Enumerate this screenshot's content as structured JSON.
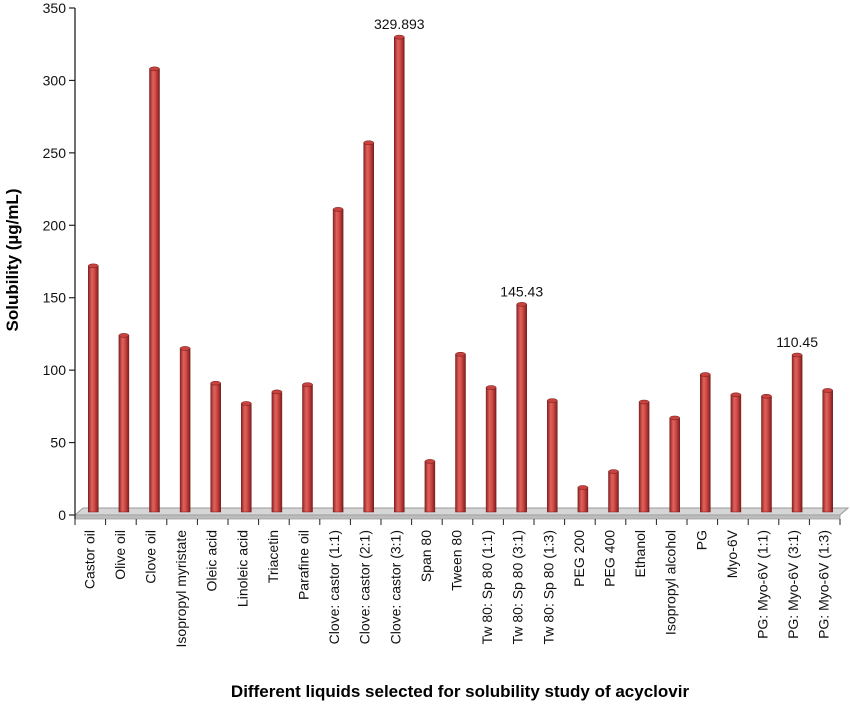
{
  "chart_data": {
    "type": "bar",
    "title": "",
    "xlabel": "Different liquids selected for solubility study of acyclovir",
    "ylabel": "Solubility (µg/mL)",
    "ylim": [
      0,
      350
    ],
    "yticks": [
      "0",
      "50",
      "100",
      "150",
      "200",
      "250",
      "300",
      "350"
    ],
    "grid": false,
    "legend": "none",
    "bar_color": "#c8423f",
    "categories": [
      "Castor oil",
      "Olive oil",
      "Clove oil",
      "Isopropyl myristate",
      "Oleic acid",
      "Linoleic acid",
      "Triacetin",
      "Parafine oil",
      "Clove: castor (1:1)",
      "Clove: castor (2:1)",
      "Clove: castor (3:1)",
      "Span 80",
      "Tween 80",
      "Tw 80: Sp 80 (1:1)",
      "Tw 80: Sp 80 (3:1)",
      "Tw 80: Sp 80 (1:3)",
      "PEG 200",
      "PEG 400",
      "Ethanol",
      "Isopropyl alcohol",
      "PG",
      "Myo-6V",
      "PG: Myo-6V (1:1)",
      "PG: Myo-6V (3:1)",
      "PG: Myo-6V (1:3)"
    ],
    "values": [
      172,
      124,
      308,
      115,
      91,
      77,
      85,
      90,
      211,
      257,
      329.893,
      37,
      111,
      88,
      145.43,
      79,
      19,
      30,
      78,
      67,
      97,
      83,
      82,
      110.45,
      86
    ],
    "data_labels": [
      {
        "index": 10,
        "text": "329.893"
      },
      {
        "index": 14,
        "text": "145.43"
      },
      {
        "index": 23,
        "text": "110.45"
      }
    ]
  }
}
